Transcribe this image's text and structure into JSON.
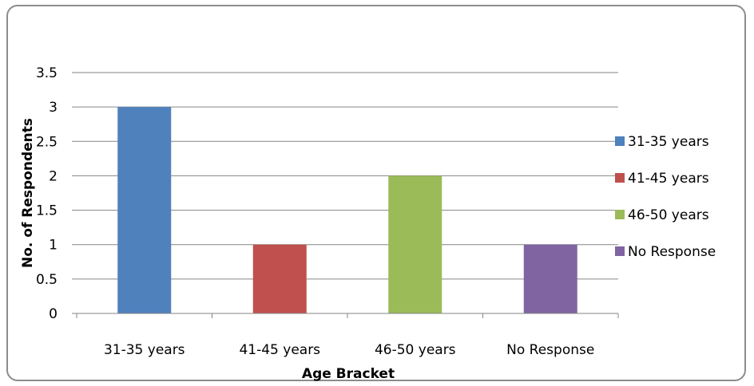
{
  "chart_data": {
    "type": "bar",
    "title": "",
    "xlabel": "Age Bracket",
    "ylabel": "No. of Respondents",
    "categories": [
      "31-35 years",
      "41-45 years",
      "46-50 years",
      "No Response"
    ],
    "values": [
      3,
      1,
      2,
      1
    ],
    "colors": [
      "#4f81bd",
      "#c0504d",
      "#9bbb59",
      "#8064a2"
    ],
    "ylim": [
      0,
      3.5
    ],
    "yticks": [
      0,
      0.5,
      1,
      1.5,
      2,
      2.5,
      3,
      3.5
    ],
    "ytick_labels": [
      "0",
      "0.5",
      "1",
      "1.5",
      "2",
      "2.5",
      "3",
      "3.5"
    ],
    "grid": true,
    "legend": {
      "position": "right",
      "entries": [
        "31-35 years",
        "41-45 years",
        "46-50 years",
        "No Response"
      ]
    }
  }
}
